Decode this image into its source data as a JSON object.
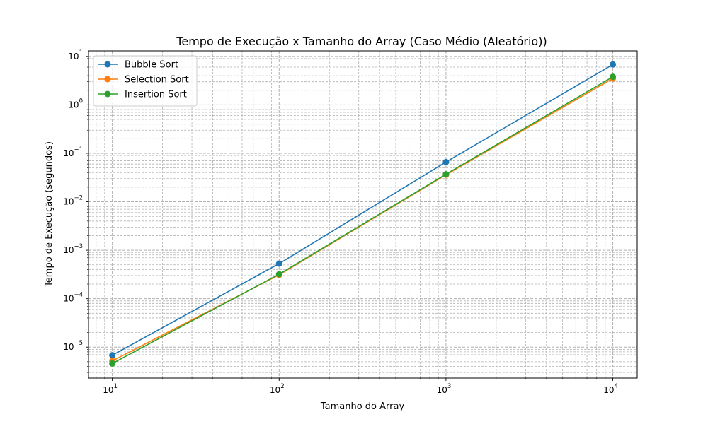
{
  "chart_data": {
    "type": "line",
    "title": "Tempo de Execução x Tamanho do Array (Caso Médio (Aleatório))",
    "xlabel": "Tamanho do Array",
    "ylabel": "Tempo de Execução (segundos)",
    "x_scale": "log",
    "y_scale": "log",
    "xlim": [
      7.2,
      14000
    ],
    "ylim": [
      2.3e-06,
      13
    ],
    "grid": true,
    "legend_position": "top-left",
    "x": [
      10,
      100,
      1000,
      10000
    ],
    "x_ticks": [
      {
        "value": 10,
        "base": "10",
        "exp": "1"
      },
      {
        "value": 100,
        "base": "10",
        "exp": "2"
      },
      {
        "value": 1000,
        "base": "10",
        "exp": "3"
      },
      {
        "value": 10000,
        "base": "10",
        "exp": "4"
      }
    ],
    "y_ticks": [
      {
        "value": 1e-05,
        "base": "10",
        "exp": "−5"
      },
      {
        "value": 0.0001,
        "base": "10",
        "exp": "−4"
      },
      {
        "value": 0.001,
        "base": "10",
        "exp": "−3"
      },
      {
        "value": 0.01,
        "base": "10",
        "exp": "−2"
      },
      {
        "value": 0.1,
        "base": "10",
        "exp": "−1"
      },
      {
        "value": 1,
        "base": "10",
        "exp": "0"
      },
      {
        "value": 10,
        "base": "10",
        "exp": "1"
      }
    ],
    "series": [
      {
        "name": "Bubble Sort",
        "color": "#1f77b4",
        "values": [
          6.8e-06,
          0.00053,
          0.066,
          6.8
        ]
      },
      {
        "name": "Selection Sort",
        "color": "#ff7f0e",
        "values": [
          5.2e-06,
          0.00031,
          0.036,
          3.5
        ]
      },
      {
        "name": "Insertion Sort",
        "color": "#2ca02c",
        "values": [
          4.6e-06,
          0.00032,
          0.037,
          3.8
        ]
      }
    ]
  }
}
